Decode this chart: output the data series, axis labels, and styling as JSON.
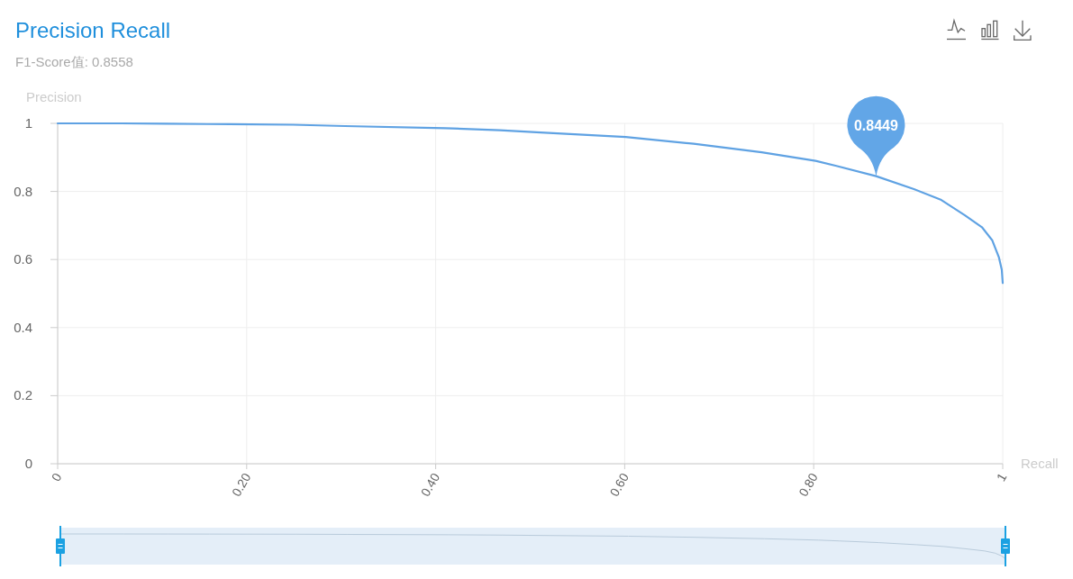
{
  "chart_data": {
    "type": "line",
    "title": "Precision Recall",
    "subtitle": "F1-Score值: 0.8558",
    "xlabel": "Recall",
    "ylabel": "Precision",
    "x": [
      0,
      0.067,
      0.114,
      0.158,
      0.249,
      0.304,
      0.41,
      0.468,
      0.511,
      0.601,
      0.673,
      0.745,
      0.802,
      0.824,
      0.866,
      0.906,
      0.935,
      0.96,
      0.978,
      0.989,
      0.996,
      0.999,
      1.0
    ],
    "series": [
      {
        "color": "#5fa2e3",
        "values": [
          1.0,
          1.0,
          0.999,
          0.998,
          0.996,
          0.992,
          0.986,
          0.98,
          0.973,
          0.96,
          0.94,
          0.915,
          0.89,
          0.875,
          0.845,
          0.807,
          0.775,
          0.73,
          0.695,
          0.656,
          0.606,
          0.57,
          0.531
        ]
      }
    ],
    "xlim": [
      0,
      1
    ],
    "ylim": [
      0,
      1
    ],
    "xticks": [
      0,
      {
        "value": 0.2,
        "label": "0.20"
      },
      {
        "value": 0.4,
        "label": "0.40"
      },
      {
        "value": 0.6,
        "label": "0.60"
      },
      {
        "value": 0.8,
        "label": "0.80"
      },
      1
    ],
    "yticks": [
      0,
      0.2,
      0.4,
      0.6,
      0.8,
      1
    ],
    "grid": true,
    "annotations": [
      {
        "text": "0.8449",
        "x": 0.866,
        "y": 0.8449
      }
    ]
  }
}
